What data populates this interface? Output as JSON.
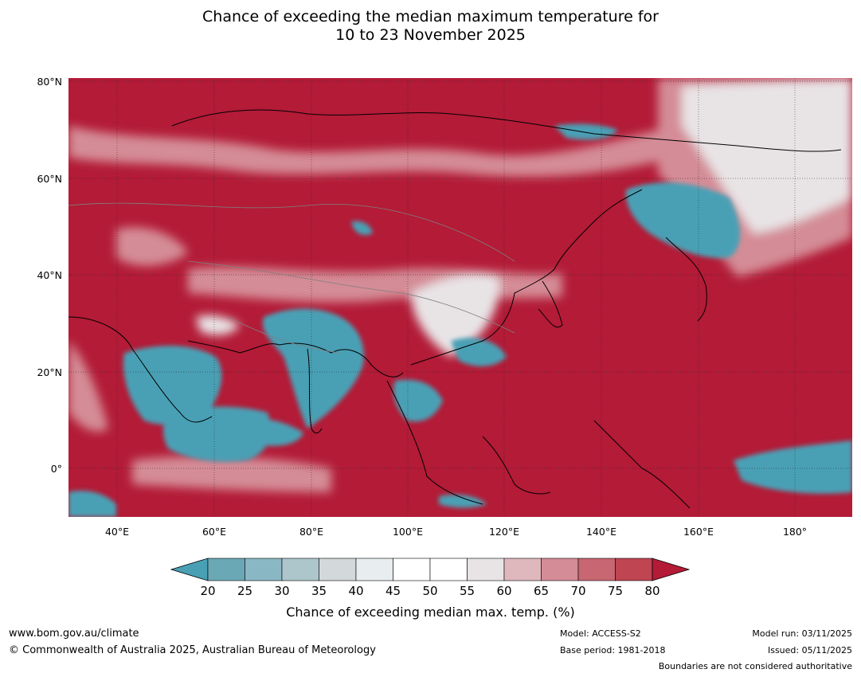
{
  "title_line1": "Chance of exceeding the median maximum temperature for",
  "title_line2": "10 to 23 November 2025",
  "lat_labels": [
    "80°N",
    "60°N",
    "40°N",
    "20°N",
    "0°"
  ],
  "lon_labels": [
    "40°E",
    "60°E",
    "80°E",
    "100°E",
    "120°E",
    "140°E",
    "160°E",
    "180°"
  ],
  "colorbar": {
    "ticks": [
      "20",
      "25",
      "30",
      "35",
      "40",
      "45",
      "50",
      "55",
      "60",
      "65",
      "70",
      "75",
      "80"
    ],
    "colors": [
      "#49a0b5",
      "#6ba8b6",
      "#89b8c4",
      "#adc6cc",
      "#d3d8da",
      "#e8eef0",
      "#ffffff",
      "#ffffff",
      "#e8e4e6",
      "#dfb8be",
      "#d48c96",
      "#c86672",
      "#bf4553",
      "#b31b37"
    ],
    "label": "Chance of exceeding median max. temp. (%)"
  },
  "colors": {
    "low": "#49a0b5",
    "high": "#b31b37",
    "land_border": "#000000",
    "country_border": "#808080"
  },
  "footer": {
    "website": "www.bom.gov.au/climate",
    "copyright": "© Commonwealth of Australia 2025, Australian Bureau of Meteorology",
    "model": "Model: ACCESS-S2",
    "base_period": "Base period: 1981-2018",
    "model_run": "Model run: 03/11/2025",
    "issued": "Issued: 05/11/2025",
    "disclaimer": "Boundaries are not considered authoritative"
  }
}
